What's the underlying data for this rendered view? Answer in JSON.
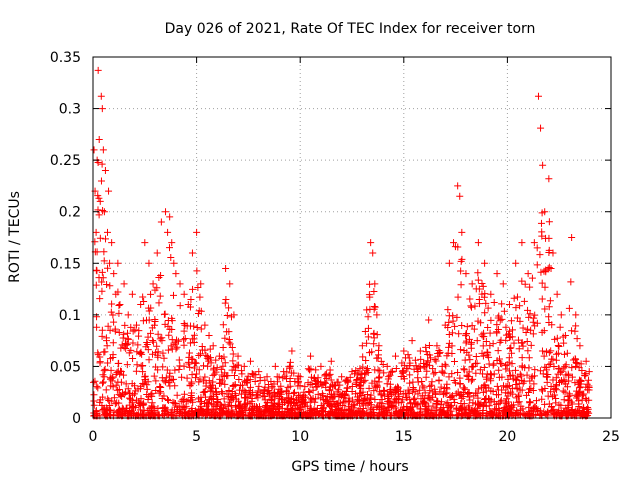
{
  "chart_data": {
    "type": "scatter",
    "title": "Day 026 of 2021, Rate Of TEC Index for receiver torn",
    "xlabel": "GPS time / hours",
    "ylabel": "ROTI / TECUs",
    "xlim": [
      0,
      25
    ],
    "ylim": [
      0,
      0.35
    ],
    "xticks": [
      0,
      5,
      10,
      15,
      20,
      25
    ],
    "yticks": [
      0,
      0.05,
      0.1,
      0.15,
      0.2,
      0.25,
      0.3,
      0.35
    ],
    "xtick_labels": [
      "0",
      "5",
      "10",
      "15",
      "20",
      "25"
    ],
    "ytick_labels": [
      "0",
      "0.05",
      "0.1",
      "0.15",
      "0.2",
      "0.25",
      "0.3",
      "0.35"
    ],
    "grid": true,
    "marker": "+",
    "color": "#ff0000",
    "series": [
      {
        "name": "ROTI",
        "points": [
          [
            0.05,
            0.26
          ],
          [
            0.1,
            0.22
          ],
          [
            0.15,
            0.18
          ],
          [
            0.2,
            0.25
          ],
          [
            0.25,
            0.337
          ],
          [
            0.3,
            0.27
          ],
          [
            0.35,
            0.21
          ],
          [
            0.4,
            0.312
          ],
          [
            0.45,
            0.3
          ],
          [
            0.5,
            0.26
          ],
          [
            0.55,
            0.2
          ],
          [
            0.6,
            0.24
          ],
          [
            0.7,
            0.18
          ],
          [
            0.75,
            0.22
          ],
          [
            0.8,
            0.15
          ],
          [
            0.9,
            0.17
          ],
          [
            1.0,
            0.14
          ],
          [
            1.1,
            0.12
          ],
          [
            1.2,
            0.15
          ],
          [
            1.3,
            0.11
          ],
          [
            1.5,
            0.13
          ],
          [
            1.7,
            0.1
          ],
          [
            1.9,
            0.12
          ],
          [
            2.1,
            0.09
          ],
          [
            2.3,
            0.11
          ],
          [
            2.5,
            0.17
          ],
          [
            2.7,
            0.15
          ],
          [
            2.9,
            0.13
          ],
          [
            3.1,
            0.16
          ],
          [
            3.3,
            0.19
          ],
          [
            3.5,
            0.2
          ],
          [
            3.6,
            0.18
          ],
          [
            3.7,
            0.195
          ],
          [
            3.8,
            0.17
          ],
          [
            3.9,
            0.15
          ],
          [
            4.0,
            0.14
          ],
          [
            4.2,
            0.13
          ],
          [
            4.4,
            0.12
          ],
          [
            4.6,
            0.11
          ],
          [
            4.8,
            0.16
          ],
          [
            5.0,
            0.18
          ],
          [
            5.2,
            0.13
          ],
          [
            5.4,
            0.09
          ],
          [
            5.6,
            0.08
          ],
          [
            5.8,
            0.07
          ],
          [
            6.1,
            0.06
          ],
          [
            6.4,
            0.145
          ],
          [
            6.6,
            0.13
          ],
          [
            6.8,
            0.1
          ],
          [
            7.0,
            0.06
          ],
          [
            7.3,
            0.05
          ],
          [
            7.6,
            0.055
          ],
          [
            8.0,
            0.045
          ],
          [
            8.4,
            0.04
          ],
          [
            8.8,
            0.05
          ],
          [
            9.2,
            0.045
          ],
          [
            9.6,
            0.065
          ],
          [
            10.0,
            0.04
          ],
          [
            10.5,
            0.06
          ],
          [
            11.0,
            0.05
          ],
          [
            11.5,
            0.055
          ],
          [
            12.0,
            0.04
          ],
          [
            12.5,
            0.045
          ],
          [
            13.0,
            0.07
          ],
          [
            13.4,
            0.17
          ],
          [
            13.5,
            0.16
          ],
          [
            13.6,
            0.13
          ],
          [
            13.7,
            0.1
          ],
          [
            13.8,
            0.07
          ],
          [
            14.2,
            0.05
          ],
          [
            14.6,
            0.06
          ],
          [
            15.0,
            0.065
          ],
          [
            15.4,
            0.075
          ],
          [
            15.8,
            0.065
          ],
          [
            16.2,
            0.095
          ],
          [
            16.6,
            0.07
          ],
          [
            17.0,
            0.09
          ],
          [
            17.2,
            0.15
          ],
          [
            17.4,
            0.17
          ],
          [
            17.6,
            0.225
          ],
          [
            17.7,
            0.215
          ],
          [
            17.8,
            0.18
          ],
          [
            18.0,
            0.14
          ],
          [
            18.3,
            0.13
          ],
          [
            18.6,
            0.17
          ],
          [
            18.9,
            0.15
          ],
          [
            19.2,
            0.12
          ],
          [
            19.5,
            0.14
          ],
          [
            19.8,
            0.13
          ],
          [
            20.1,
            0.11
          ],
          [
            20.4,
            0.15
          ],
          [
            20.7,
            0.17
          ],
          [
            21.0,
            0.14
          ],
          [
            21.3,
            0.17
          ],
          [
            21.5,
            0.312
          ],
          [
            21.6,
            0.281
          ],
          [
            21.7,
            0.245
          ],
          [
            21.8,
            0.2
          ],
          [
            22.0,
            0.232
          ],
          [
            22.2,
            0.16
          ],
          [
            22.4,
            0.12
          ],
          [
            22.6,
            0.1
          ],
          [
            22.8,
            0.08
          ],
          [
            23.1,
            0.175
          ],
          [
            23.3,
            0.1
          ],
          [
            23.5,
            0.07
          ],
          [
            23.8,
            0.055
          ],
          [
            23.95,
            0.045
          ]
        ]
      }
    ]
  }
}
